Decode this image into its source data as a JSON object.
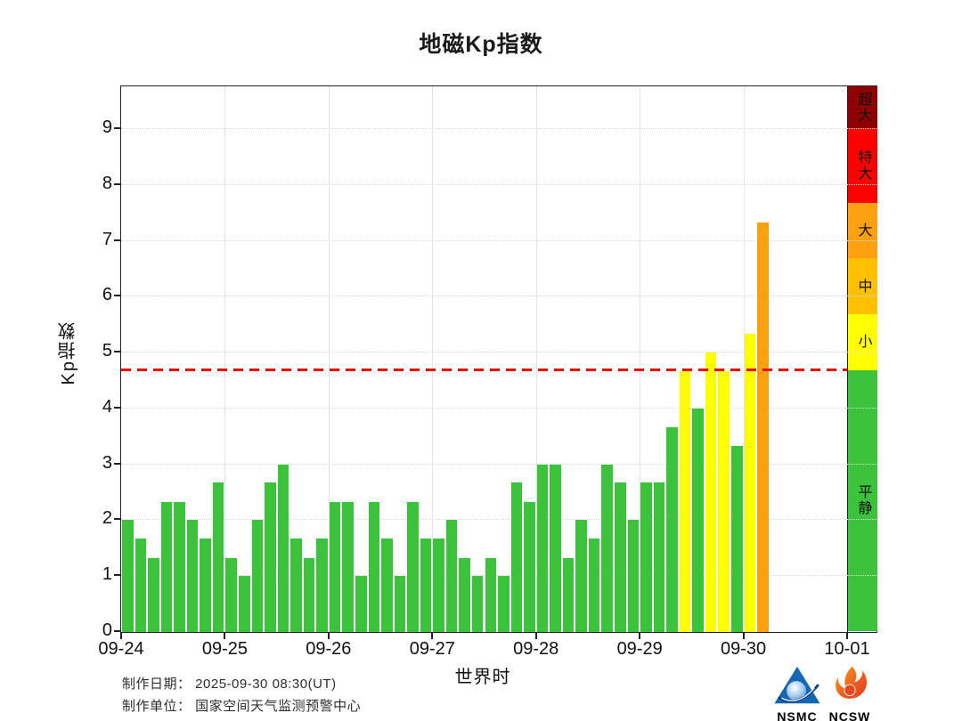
{
  "title": "地磁Kp指数",
  "footer": {
    "line1": "制作日期： 2025-09-30 08:30(UT)",
    "line2": "制作单位： 国家空间天气监测预警中心"
  },
  "logos": {
    "nsmc": "NSMC",
    "ncsw": "NCSW",
    "nsmc_color": "#14366e",
    "ncsw_color": "#f15a22"
  },
  "chart_data": {
    "type": "bar",
    "title": "地磁Kp指数",
    "xlabel": "世界时",
    "ylabel": "Kp指数",
    "ylim": [
      0,
      9.75
    ],
    "yticks": [
      0,
      1,
      2,
      3,
      4,
      5,
      6,
      7,
      8,
      9
    ],
    "x_tick_labels": [
      "09-24",
      "09-25",
      "09-26",
      "09-27",
      "09-28",
      "09-29",
      "09-30",
      "10-01"
    ],
    "bars_per_day": 8,
    "interval_hours": 3,
    "grid": true,
    "legend_position": "right-colorbar",
    "threshold_line": {
      "value": 4.67,
      "color": "#FF0000",
      "style": "dashed"
    },
    "days": [
      {
        "date": "09-24",
        "kp": [
          2.0,
          1.67,
          1.33,
          2.33,
          2.33,
          2.0,
          1.67,
          2.67
        ]
      },
      {
        "date": "09-25",
        "kp": [
          1.33,
          1.0,
          2.0,
          2.67,
          3.0,
          1.67,
          1.33,
          1.67
        ]
      },
      {
        "date": "09-26",
        "kp": [
          2.33,
          2.33,
          1.0,
          2.33,
          1.67,
          1.0,
          2.33,
          1.67
        ]
      },
      {
        "date": "09-27",
        "kp": [
          1.67,
          2.0,
          1.33,
          1.0,
          1.33,
          1.0,
          2.67,
          2.33
        ]
      },
      {
        "date": "09-28",
        "kp": [
          3.0,
          3.0,
          1.33,
          2.0,
          1.67,
          3.0,
          2.67,
          2.0
        ]
      },
      {
        "date": "09-29",
        "kp": [
          2.67,
          2.67,
          3.67,
          4.67,
          4.0,
          5.0,
          4.67,
          3.33
        ]
      },
      {
        "date": "09-30",
        "kp": [
          5.33,
          7.33
        ]
      }
    ],
    "color_scale": [
      {
        "label": "超大",
        "min": 9.0,
        "max": 9.75,
        "color": "#8F0000"
      },
      {
        "label": "特大",
        "min": 7.67,
        "max": 9.0,
        "color": "#FF0000"
      },
      {
        "label": "大",
        "min": 6.67,
        "max": 7.67,
        "color": "#FFA010"
      },
      {
        "label": "中",
        "min": 5.67,
        "max": 6.67,
        "color": "#FFC000"
      },
      {
        "label": "小",
        "min": 4.67,
        "max": 5.67,
        "color": "#FFFF00"
      },
      {
        "label": "平静",
        "min": 0,
        "max": 4.67,
        "color": "#3BC43B"
      }
    ]
  }
}
